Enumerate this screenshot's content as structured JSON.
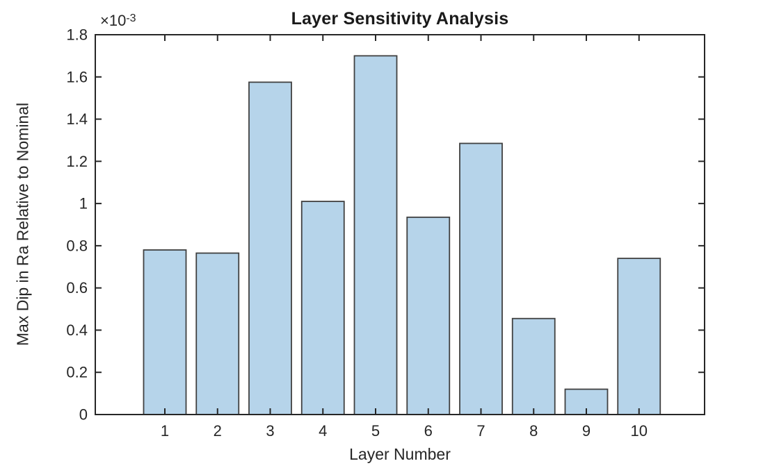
{
  "chart_data": {
    "type": "bar",
    "title": "Layer Sensitivity Analysis",
    "xlabel": "Layer Number",
    "ylabel": "Max Dip in Ra Relative to Nominal",
    "y_scale_label": {
      "base": "×10",
      "exponent": "-3"
    },
    "categories": [
      "1",
      "2",
      "3",
      "4",
      "5",
      "6",
      "7",
      "8",
      "9",
      "10"
    ],
    "values": [
      0.00078,
      0.000765,
      0.001575,
      0.00101,
      0.0017,
      0.000935,
      0.001285,
      0.000455,
      0.00012,
      0.00074
    ],
    "ylim": [
      0,
      0.0018
    ],
    "yticks": [
      0,
      0.0002,
      0.0004,
      0.0006,
      0.0008,
      0.001,
      0.0012,
      0.0014,
      0.0016,
      0.0018
    ],
    "ytick_labels": [
      "0",
      "0.2",
      "0.4",
      "0.6",
      "0.8",
      "1",
      "1.2",
      "1.4",
      "1.6",
      "1.8"
    ],
    "grid": false,
    "legend": null,
    "colors": {
      "bar_fill": "#B6D4EA",
      "bar_edge": "#404040",
      "axis": "#262626",
      "tick_text": "#262626"
    }
  }
}
